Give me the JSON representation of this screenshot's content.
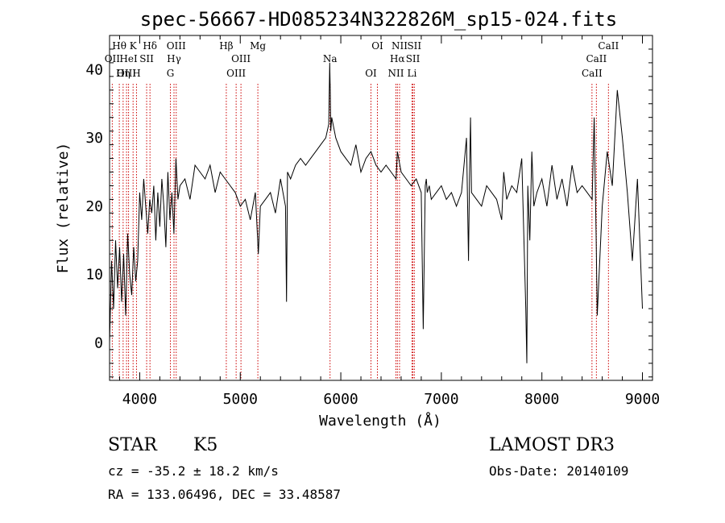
{
  "chart_data": {
    "type": "line",
    "title": "spec-56667-HD085234N322826M_sp15-024.fits",
    "xlabel": "Wavelength (Å)",
    "ylabel": "Flux (relative)",
    "xlim": [
      3700,
      9100
    ],
    "ylim": [
      -5.5,
      45
    ],
    "x_ticks": [
      4000,
      5000,
      6000,
      7000,
      8000,
      9000
    ],
    "y_ticks": [
      0,
      10,
      20,
      30,
      40
    ],
    "series": [
      {
        "color": "#000000",
        "x": [
          3700,
          3720,
          3740,
          3760,
          3780,
          3800,
          3820,
          3840,
          3860,
          3880,
          3900,
          3920,
          3940,
          3960,
          3980,
          4000,
          4020,
          4040,
          4060,
          4080,
          4100,
          4120,
          4140,
          4160,
          4180,
          4200,
          4220,
          4240,
          4260,
          4280,
          4300,
          4320,
          4340,
          4360,
          4380,
          4400,
          4450,
          4500,
          4550,
          4600,
          4650,
          4700,
          4750,
          4800,
          4850,
          4900,
          4950,
          5000,
          5050,
          5100,
          5150,
          5180,
          5200,
          5250,
          5300,
          5350,
          5400,
          5450,
          5460,
          5470,
          5500,
          5550,
          5600,
          5650,
          5700,
          5750,
          5800,
          5850,
          5880,
          5890,
          5896,
          5900,
          5910,
          5950,
          6000,
          6050,
          6100,
          6150,
          6200,
          6250,
          6300,
          6350,
          6400,
          6450,
          6500,
          6550,
          6563,
          6600,
          6650,
          6700,
          6750,
          6800,
          6820,
          6840,
          6850,
          6860,
          6880,
          6900,
          6950,
          7000,
          7050,
          7100,
          7150,
          7200,
          7250,
          7270,
          7280,
          7290,
          7300,
          7350,
          7400,
          7450,
          7500,
          7550,
          7600,
          7620,
          7650,
          7700,
          7750,
          7800,
          7840,
          7850,
          7860,
          7880,
          7900,
          7920,
          7950,
          8000,
          8050,
          8100,
          8150,
          8200,
          8250,
          8300,
          8350,
          8400,
          8450,
          8500,
          8520,
          8540,
          8550,
          8600,
          8650,
          8700,
          8750,
          8800,
          8850,
          8900,
          8950,
          9000
        ],
        "y": [
          0,
          12,
          5,
          15,
          8,
          14,
          6,
          13,
          4,
          16,
          10,
          7,
          14,
          9,
          12,
          22,
          18,
          24,
          20,
          16,
          21,
          19,
          23,
          15,
          22,
          17,
          24,
          20,
          14,
          25,
          18,
          22,
          16,
          27,
          21,
          23,
          24,
          21,
          26,
          25,
          24,
          26,
          22,
          25,
          24,
          23,
          22,
          20,
          21,
          18,
          22,
          13,
          20,
          21,
          22,
          19,
          24,
          20,
          6,
          25,
          24,
          26,
          27,
          26,
          27,
          28,
          29,
          30,
          32,
          41,
          36,
          31,
          33,
          30,
          28,
          27,
          26,
          29,
          25,
          27,
          28,
          26,
          25,
          26,
          25,
          24,
          28,
          25,
          24,
          23,
          24,
          22,
          2,
          23,
          24,
          22,
          23,
          21,
          22,
          23,
          21,
          22,
          20,
          22,
          30,
          12,
          24,
          33,
          22,
          21,
          20,
          23,
          22,
          21,
          18,
          25,
          21,
          23,
          22,
          27,
          5,
          -3,
          23,
          15,
          28,
          20,
          22,
          24,
          20,
          26,
          21,
          24,
          20,
          26,
          22,
          23,
          22,
          21,
          33,
          15,
          4,
          20,
          28,
          23,
          37,
          30,
          22,
          12,
          24,
          5
        ]
      }
    ],
    "line_markers": [
      {
        "name": "Hθ",
        "wavelength": 3797
      },
      {
        "name": "OII",
        "wavelength": 3727
      },
      {
        "name": "OIII",
        "wavelength": 3869
      },
      {
        "name": "K",
        "wavelength": 3934
      },
      {
        "name": "HeI",
        "wavelength": 3889
      },
      {
        "name": "Hη",
        "wavelength": 3835
      },
      {
        "name": "Hδ",
        "wavelength": 4102
      },
      {
        "name": "SII",
        "wavelength": 4069
      },
      {
        "name": "H",
        "wavelength": 3968
      },
      {
        "name": "OIII",
        "wavelength": 4363
      },
      {
        "name": "Hγ",
        "wavelength": 4341
      },
      {
        "name": "G",
        "wavelength": 4305
      },
      {
        "name": "Hβ",
        "wavelength": 4861
      },
      {
        "name": "OIII",
        "wavelength": 5007
      },
      {
        "name": "OIII",
        "wavelength": 4959
      },
      {
        "name": "Mg",
        "wavelength": 5175
      },
      {
        "name": "Na",
        "wavelength": 5893
      },
      {
        "name": "OI",
        "wavelength": 6300
      },
      {
        "name": "OI",
        "wavelength": 6364
      },
      {
        "name": "Hα",
        "wavelength": 6563
      },
      {
        "name": "NII",
        "wavelength": 6548
      },
      {
        "name": "NII",
        "wavelength": 6584
      },
      {
        "name": "SII",
        "wavelength": 6717
      },
      {
        "name": "Li",
        "wavelength": 6708
      },
      {
        "name": "SII",
        "wavelength": 6731
      },
      {
        "name": "CaII",
        "wavelength": 8542
      },
      {
        "name": "CaII",
        "wavelength": 8498
      },
      {
        "name": "CaII",
        "wavelength": 8662
      }
    ],
    "marker_color": "#cc0000"
  },
  "info": {
    "object_class": "STAR",
    "subclass": "K5",
    "redshift": "cz = -35.2 ± 18.2 km/s",
    "coordinates": "RA = 133.06496, DEC =  33.48587",
    "survey": "LAMOST DR3",
    "obs_date": "Obs-Date: 20140109"
  }
}
